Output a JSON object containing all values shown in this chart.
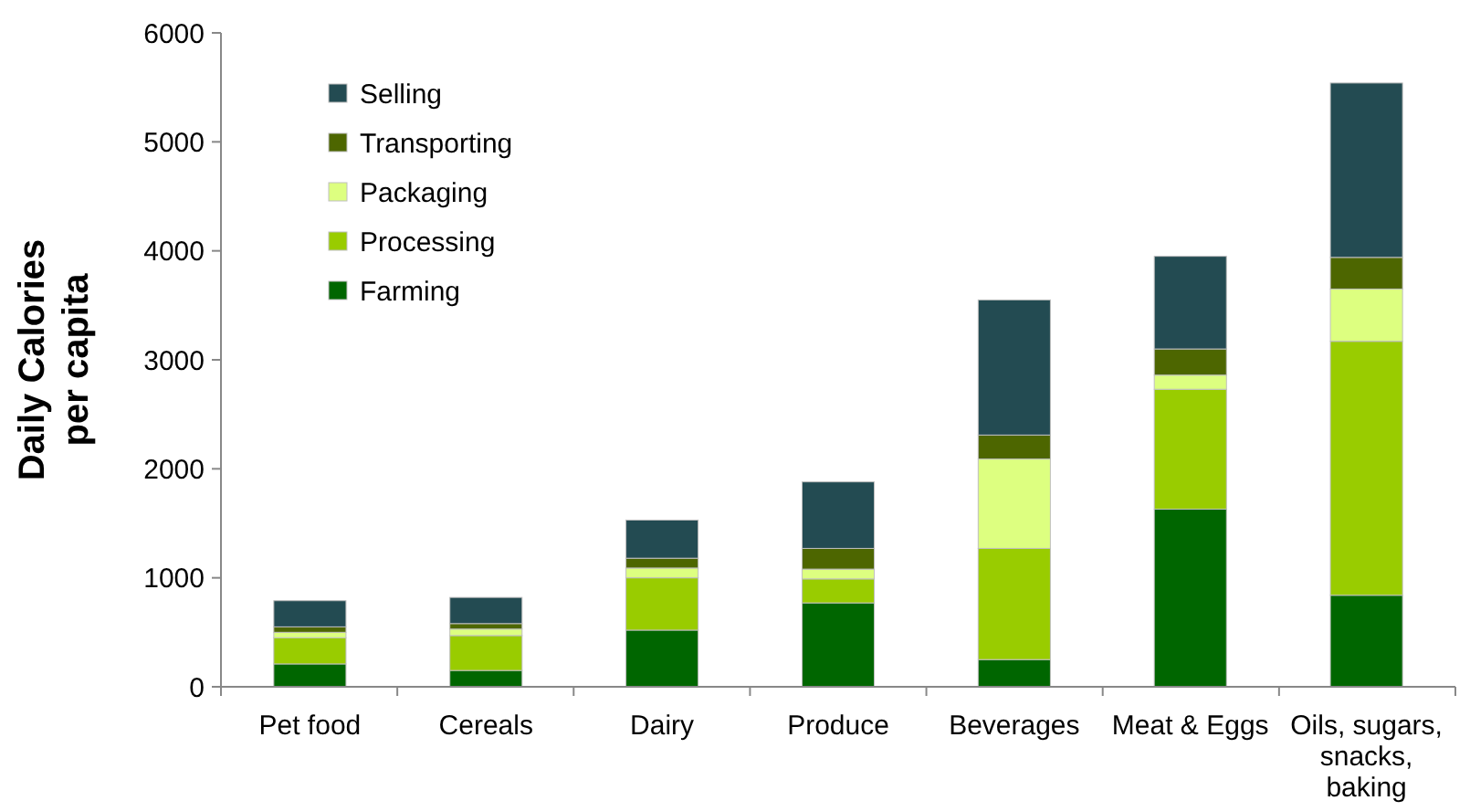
{
  "chart_data": {
    "type": "bar",
    "stacked": true,
    "ylabel": "Daily Calories per capita",
    "categories": [
      "Pet food",
      "Cereals",
      "Dairy",
      "Produce",
      "Beverages",
      "Meat & Eggs",
      "Oils, sugars, snacks, baking"
    ],
    "series": [
      {
        "name": "Farming",
        "color": "#006600",
        "values": [
          210,
          150,
          520,
          770,
          250,
          1630,
          840
        ]
      },
      {
        "name": "Processing",
        "color": "#99cc00",
        "values": [
          240,
          320,
          480,
          220,
          1020,
          1100,
          2330
        ]
      },
      {
        "name": "Packaging",
        "color": "#ddff80",
        "values": [
          50,
          60,
          90,
          90,
          820,
          130,
          480
        ]
      },
      {
        "name": "Transporting",
        "color": "#4d6600",
        "values": [
          50,
          50,
          90,
          190,
          220,
          240,
          290
        ]
      },
      {
        "name": "Selling",
        "color": "#234b52",
        "values": [
          240,
          240,
          350,
          610,
          1240,
          850,
          1600
        ]
      }
    ],
    "ylim": [
      0,
      6000
    ],
    "yticks": [
      0,
      1000,
      2000,
      3000,
      4000,
      5000,
      6000
    ],
    "grid": false,
    "legend": "top left"
  }
}
